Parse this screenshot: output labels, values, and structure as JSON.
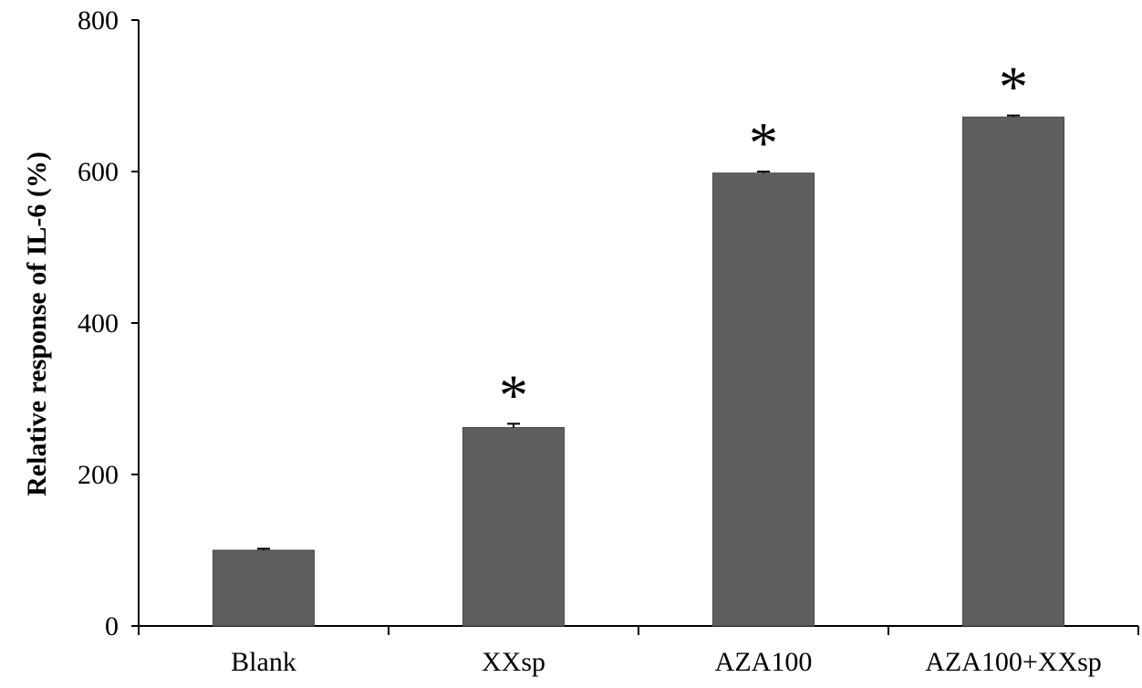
{
  "chart_data": {
    "type": "bar",
    "title": "",
    "xlabel": "",
    "ylabel": "Relative response of IL-6 (%)",
    "ylim": [
      0,
      800
    ],
    "yticks": [
      0,
      200,
      400,
      600,
      800
    ],
    "categories": [
      "Blank",
      "XXsp",
      "AZA100",
      "AZA100+XXsp"
    ],
    "values": [
      100,
      262,
      598,
      672
    ],
    "errors": [
      2,
      5,
      2,
      2
    ],
    "annotations": [
      "",
      "*",
      "*",
      "*"
    ],
    "grid": false,
    "legend": "none",
    "colors": {
      "bar": "#5f5f5f",
      "bar_edge": "#4a4a4a",
      "axis": "#000000"
    }
  }
}
